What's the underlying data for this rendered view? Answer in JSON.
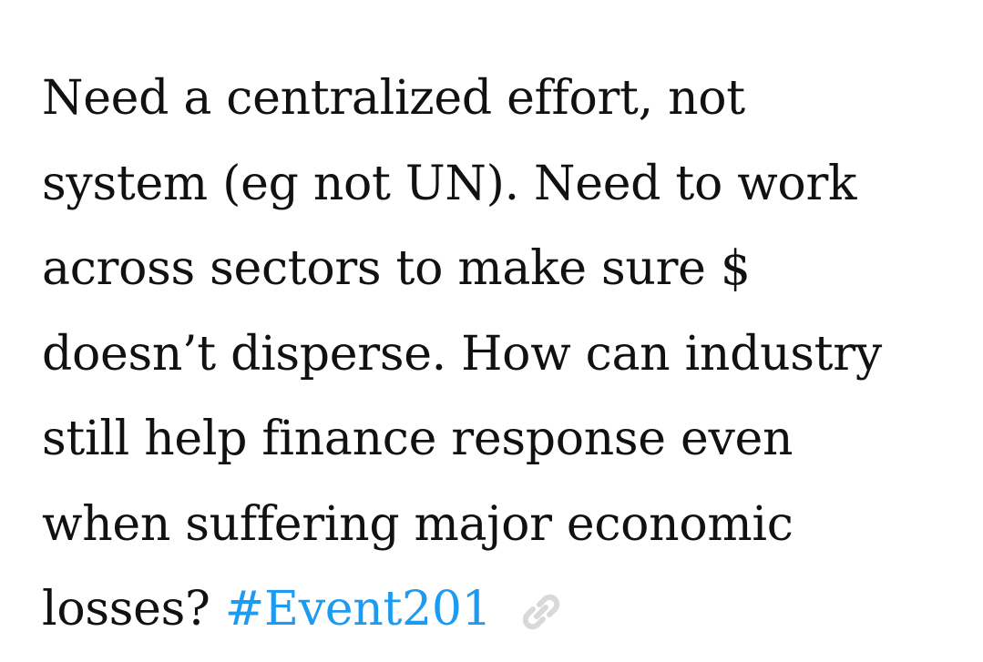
{
  "post": {
    "lines": [
      "Need a centralized effort, not",
      "system (eg not UN). Need to work",
      "across sectors to make sure $",
      "doesn’t disperse. How can industry",
      "still help finance response even",
      "when suffering major economic"
    ],
    "last_line_text": "losses?",
    "hashtag": "#Event201"
  },
  "icons": {
    "link": "link-icon"
  },
  "colors": {
    "text": "#111111",
    "hashtag": "#1d9bf0",
    "icon": "#d9d9d9",
    "background": "#ffffff"
  }
}
